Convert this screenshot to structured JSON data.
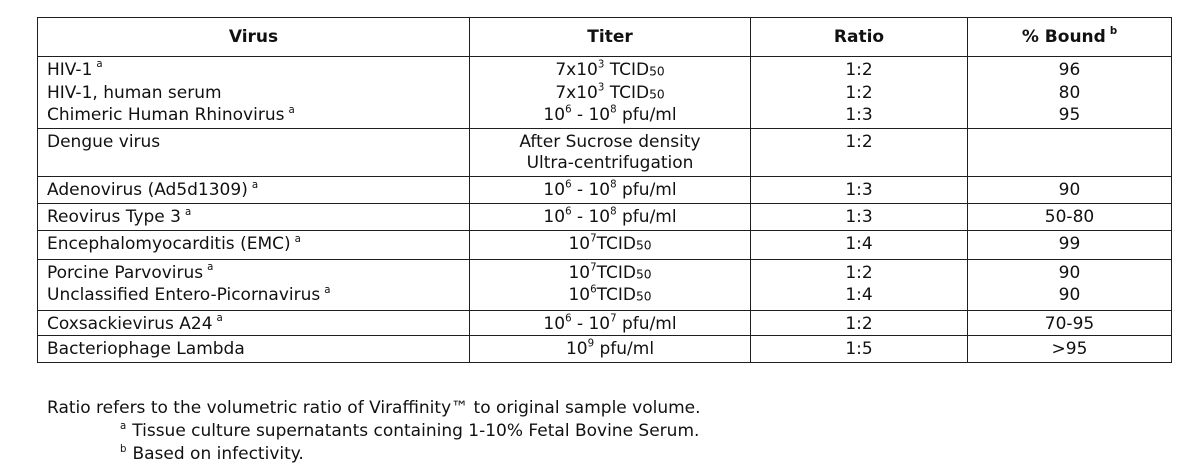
{
  "table": {
    "headers": {
      "virus": "Virus",
      "titer": "Titer",
      "ratio": "Ratio",
      "bound": "% Bound",
      "bound_note": "b"
    },
    "rows": {
      "r1": {
        "virus": "HIV-1",
        "note": "a",
        "titer_a": "7x10",
        "titer_pow": "3",
        "titer_b": " TCID",
        "titer_sub": "50",
        "ratio": "1:2",
        "bound": "96"
      },
      "r2": {
        "virus": "HIV-1, human serum",
        "titer_a": "7x10",
        "titer_pow": "3",
        "titer_b": " TCID",
        "titer_sub": "50",
        "ratio": "1:2",
        "bound": "80"
      },
      "r3": {
        "virus": "Chimeric Human Rhinovirus",
        "note": "a",
        "titer_a": "10",
        "titer_pow": "6",
        "titer_b": " - 10",
        "titer_pow2": "8",
        "titer_c": " pfu/ml",
        "ratio": "1:3",
        "bound": "95"
      },
      "r4": {
        "virus": "Dengue virus",
        "titer_l1": "After Sucrose density",
        "titer_l2": "Ultra-centrifugation",
        "ratio": "1:2",
        "bound": ""
      },
      "r5": {
        "virus": "Adenovirus (Ad5d1309)",
        "note": "a",
        "titer_a": "10",
        "titer_pow": "6",
        "titer_b": " - 10",
        "titer_pow2": "8",
        "titer_c": " pfu/ml",
        "ratio": "1:3",
        "bound": "90"
      },
      "r6": {
        "virus": "Reovirus Type 3",
        "note": "a",
        "titer_a": "10",
        "titer_pow": "6",
        "titer_b": " - 10",
        "titer_pow2": "8",
        "titer_c": " pfu/ml",
        "ratio": "1:3",
        "bound": "50-80"
      },
      "r7": {
        "virus": "Encephalomyocarditis (EMC)",
        "note": "a",
        "titer_a": "10",
        "titer_pow": "7",
        "titer_b": "TCID",
        "titer_sub": "50",
        "ratio": "1:4",
        "bound": "99"
      },
      "r8": {
        "virus": "Porcine Parvovirus",
        "note": "a",
        "titer_a": "10",
        "titer_pow": "7",
        "titer_b": "TCID",
        "titer_sub": "50",
        "ratio": "1:2",
        "bound": "90"
      },
      "r9": {
        "virus": "Unclassified Entero-Picornavirus",
        "note": "a",
        "titer_a": "10",
        "titer_pow": "6",
        "titer_b": "TCID",
        "titer_sub": "50",
        "ratio": "1:4",
        "bound": "90"
      },
      "r10": {
        "virus": "Coxsackievirus A24",
        "note": "a",
        "titer_a": "10",
        "titer_pow": "6",
        "titer_b": " - 10",
        "titer_pow2": "7",
        "titer_c": " pfu/ml",
        "ratio": "1:2",
        "bound": "70-95"
      },
      "r11": {
        "virus": "Bacteriophage Lambda",
        "titer_a": "10",
        "titer_pow": "9",
        "titer_b": " pfu/ml",
        "ratio": "1:5",
        "bound": ">95"
      }
    }
  },
  "footnotes": {
    "ratio_note": "Ratio refers to the volumetric ratio of Viraffinity™ to original sample volume.",
    "a_mark": "a",
    "a_text": "Tissue culture supernatants containing 1-10% Fetal Bovine Serum.",
    "b_mark": "b",
    "b_text": "Based on infectivity."
  }
}
